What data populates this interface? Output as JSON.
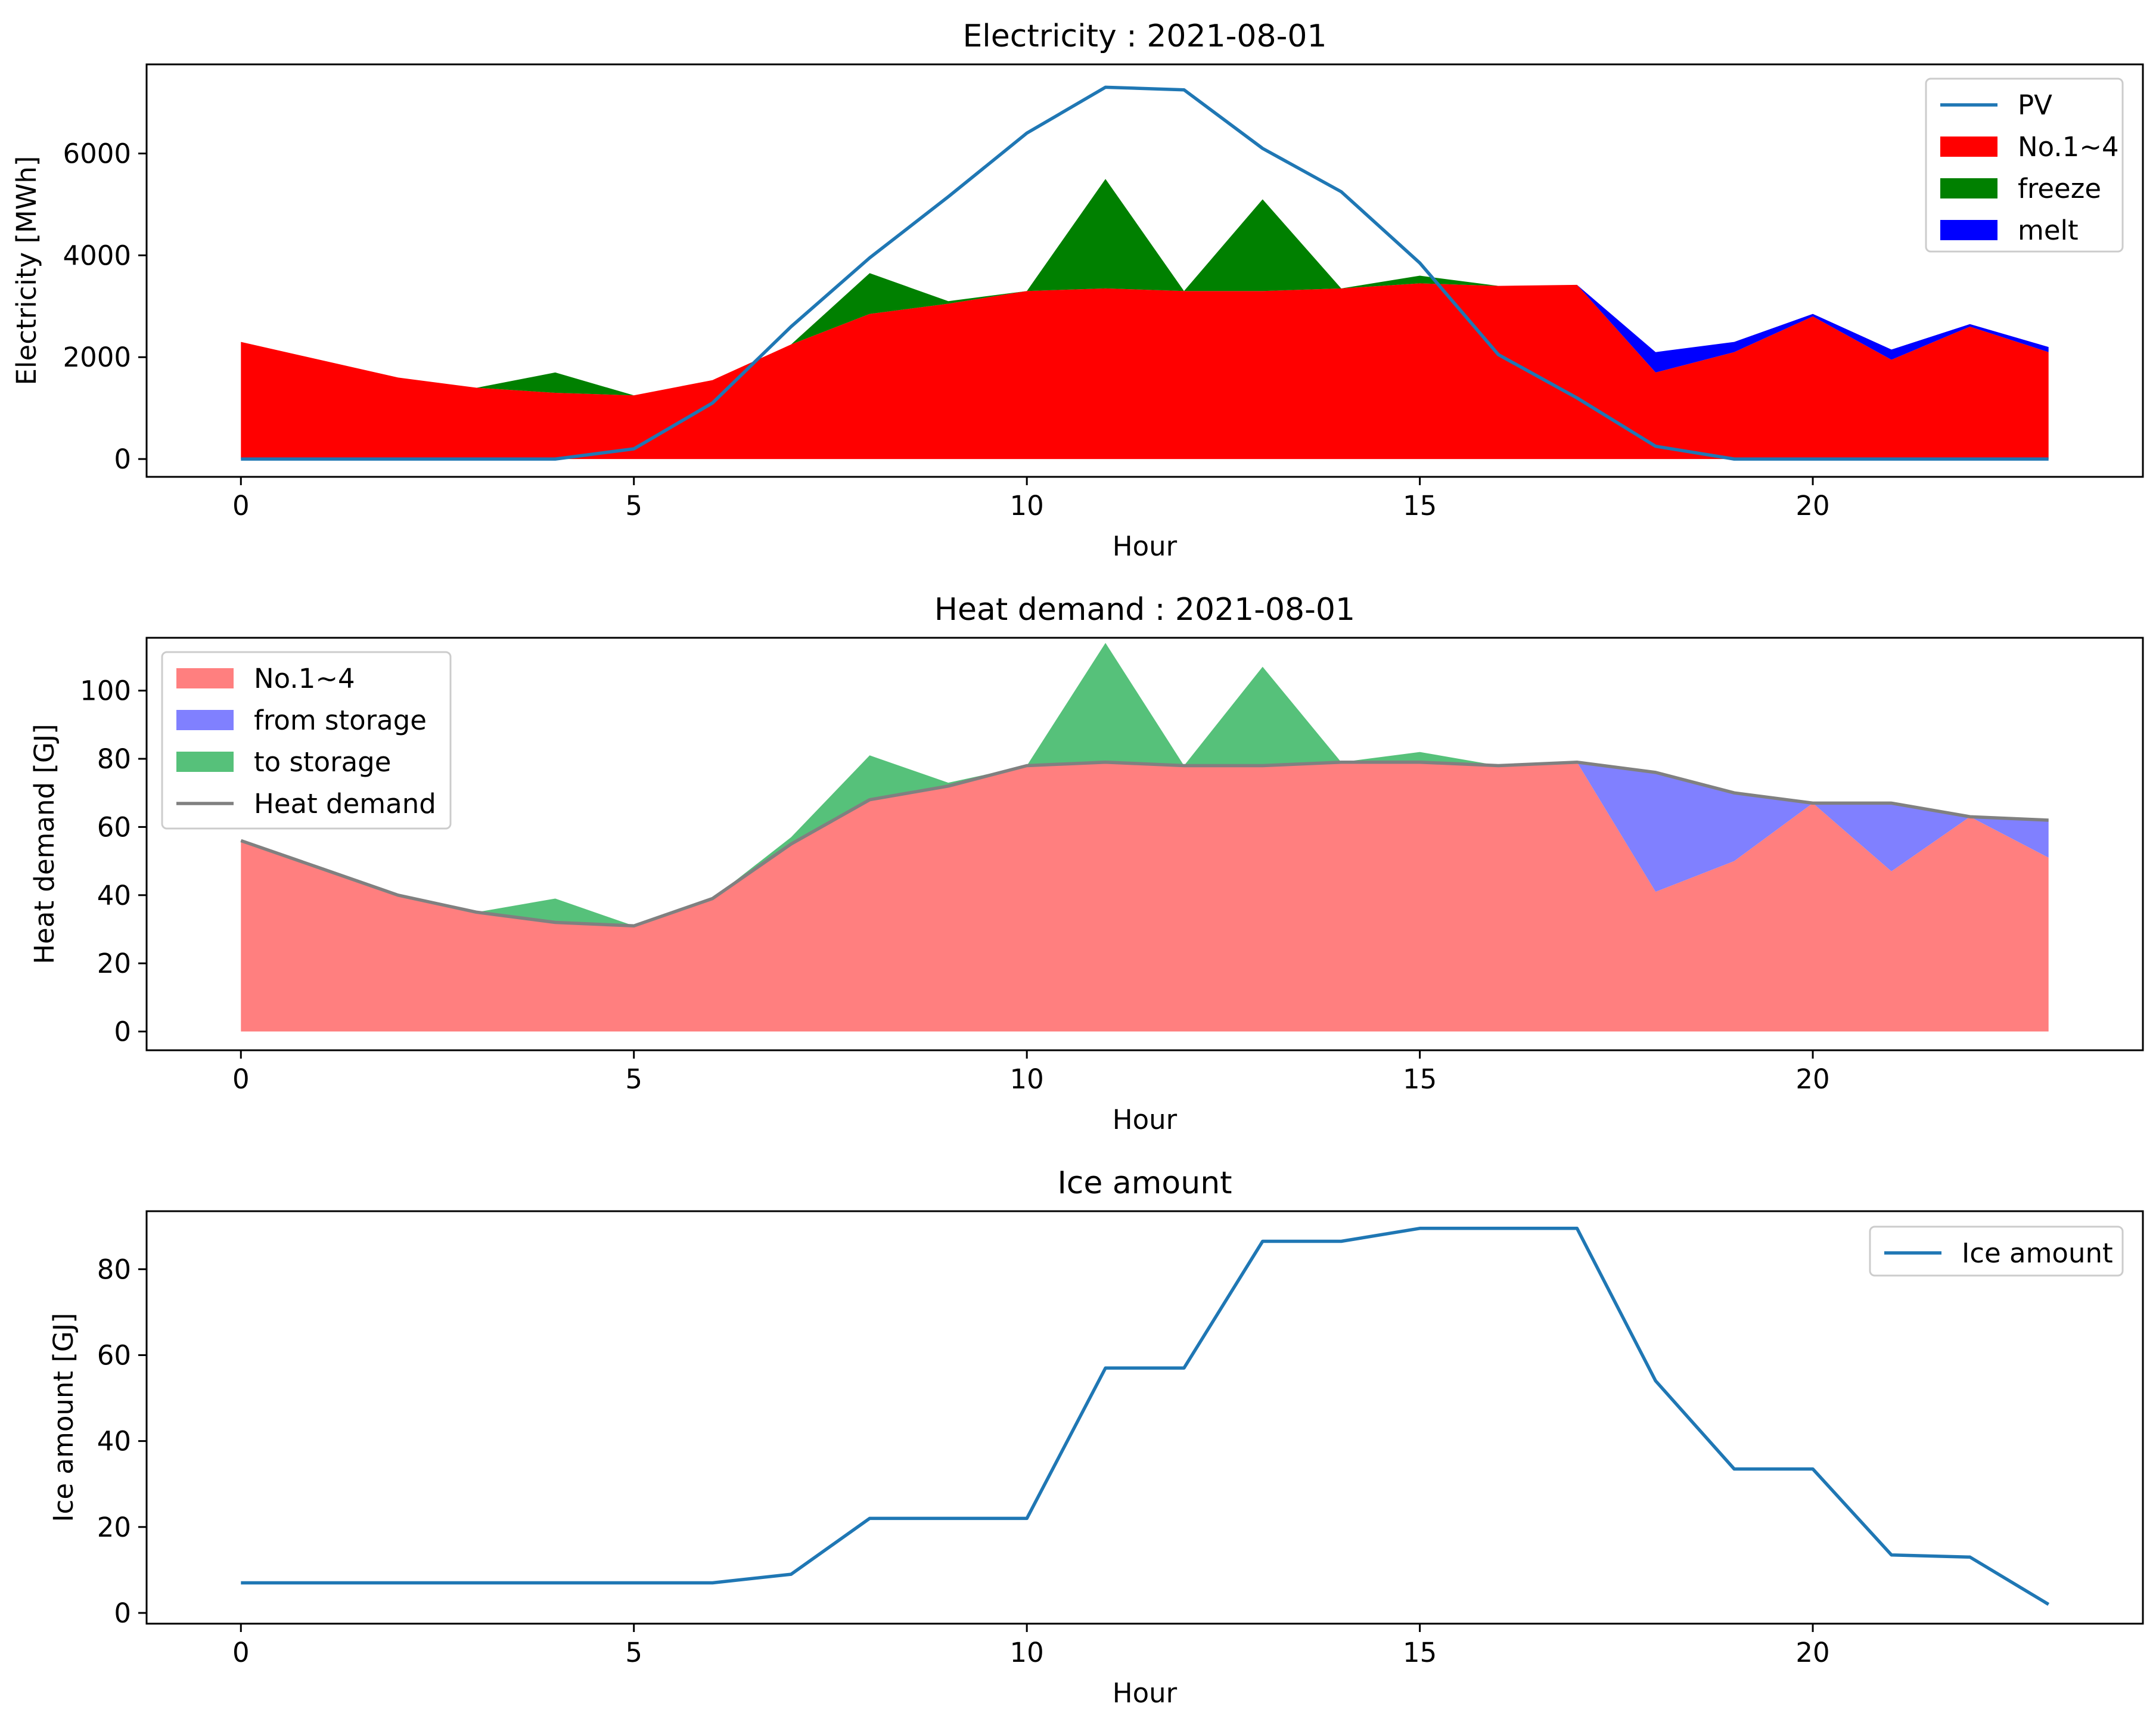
{
  "chart_data": [
    {
      "type": "area",
      "title": "Electricity : 2021-08-01",
      "xlabel": "Hour",
      "ylabel": "Electricity [MWh]",
      "xlim": [
        -1.2,
        24.2
      ],
      "ylim": [
        -350,
        7750
      ],
      "xticks": [
        0,
        5,
        10,
        15,
        20
      ],
      "yticks": [
        0,
        2000,
        4000,
        6000
      ],
      "legend_position": "top-right",
      "x": [
        0,
        1,
        2,
        3,
        4,
        5,
        6,
        7,
        8,
        9,
        10,
        11,
        12,
        13,
        14,
        15,
        16,
        17,
        18,
        19,
        20,
        21,
        22,
        23
      ],
      "series": [
        {
          "name": "No.1~4",
          "kind": "area",
          "color": "#ff0000",
          "values": [
            2300,
            1950,
            1600,
            1400,
            1300,
            1250,
            1550,
            2250,
            2850,
            3050,
            3300,
            3350,
            3300,
            3300,
            3350,
            3450,
            3400,
            3420,
            1700,
            2100,
            2800,
            1950,
            2600,
            2100
          ]
        },
        {
          "name": "freeze",
          "kind": "area",
          "color": "#008000",
          "values": [
            0,
            0,
            0,
            0,
            400,
            0,
            0,
            0,
            800,
            50,
            0,
            2150,
            0,
            1800,
            0,
            150,
            0,
            0,
            0,
            0,
            0,
            0,
            0,
            0
          ]
        },
        {
          "name": "melt",
          "kind": "area",
          "color": "#0000ff",
          "values": [
            0,
            0,
            0,
            0,
            0,
            0,
            0,
            0,
            0,
            0,
            0,
            0,
            0,
            0,
            0,
            0,
            0,
            0,
            400,
            200,
            50,
            200,
            50,
            100
          ]
        },
        {
          "name": "PV",
          "kind": "line",
          "color": "#1f77b4",
          "values": [
            0,
            0,
            0,
            0,
            0,
            200,
            1100,
            2600,
            3950,
            5150,
            6400,
            7300,
            7250,
            6100,
            5250,
            3850,
            2050,
            1200,
            250,
            0,
            0,
            0,
            0,
            0
          ]
        }
      ]
    },
    {
      "type": "area",
      "title": "Heat demand : 2021-08-01",
      "xlabel": "Hour",
      "ylabel": "Heat demand [GJ]",
      "xlim": [
        -1.2,
        24.2
      ],
      "ylim": [
        -5.5,
        115.5
      ],
      "xticks": [
        0,
        5,
        10,
        15,
        20
      ],
      "yticks": [
        0,
        20,
        40,
        60,
        80,
        100
      ],
      "legend_position": "top-left",
      "x": [
        0,
        1,
        2,
        3,
        4,
        5,
        6,
        7,
        8,
        9,
        10,
        11,
        12,
        13,
        14,
        15,
        16,
        17,
        18,
        19,
        20,
        21,
        22,
        23
      ],
      "series": [
        {
          "name": "No.1~4",
          "kind": "area",
          "color": "#ff7f7f",
          "values": [
            56,
            48,
            40,
            35,
            32,
            31,
            39,
            55,
            68,
            72,
            78,
            79,
            78,
            78,
            79,
            79,
            78,
            79,
            41,
            50,
            67,
            47,
            63,
            51
          ]
        },
        {
          "name": "from storage",
          "kind": "area",
          "color": "#8080ff",
          "values": [
            0,
            0,
            0,
            0,
            0,
            0,
            0,
            0,
            0,
            0,
            0,
            0,
            0,
            0,
            0,
            0,
            0,
            0,
            35,
            20,
            0,
            20,
            0,
            11
          ]
        },
        {
          "name": "to storage",
          "kind": "area",
          "color": "#56c17a",
          "values": [
            0,
            0,
            0,
            0,
            7,
            0,
            0,
            2,
            13,
            1,
            0,
            35,
            0,
            29,
            0,
            3,
            0,
            0,
            0,
            0,
            0,
            0,
            0,
            0
          ]
        },
        {
          "name": "Heat demand",
          "kind": "line",
          "color": "#808080",
          "values": [
            56,
            48,
            40,
            35,
            32,
            31,
            39,
            55,
            68,
            72,
            78,
            79,
            78,
            78,
            79,
            79,
            78,
            79,
            76,
            70,
            67,
            67,
            63,
            62
          ]
        }
      ]
    },
    {
      "type": "line",
      "title": "Ice amount",
      "xlabel": "Hour",
      "ylabel": "Ice amount [GJ]",
      "xlim": [
        -1.2,
        24.2
      ],
      "ylim": [
        -2.5,
        93.5
      ],
      "xticks": [
        0,
        5,
        10,
        15,
        20
      ],
      "yticks": [
        0,
        20,
        40,
        60,
        80
      ],
      "legend_position": "top-right",
      "x": [
        0,
        1,
        2,
        3,
        4,
        5,
        6,
        7,
        8,
        9,
        10,
        11,
        12,
        13,
        14,
        15,
        16,
        17,
        18,
        19,
        20,
        21,
        22,
        23
      ],
      "series": [
        {
          "name": "Ice amount",
          "kind": "line",
          "color": "#1f77b4",
          "values": [
            7,
            7,
            7,
            7,
            7,
            7,
            7,
            9,
            22,
            22,
            22,
            57,
            57,
            86.5,
            86.5,
            89.5,
            89.5,
            89.5,
            54,
            33.5,
            33.5,
            13.5,
            13,
            2
          ]
        }
      ]
    }
  ]
}
